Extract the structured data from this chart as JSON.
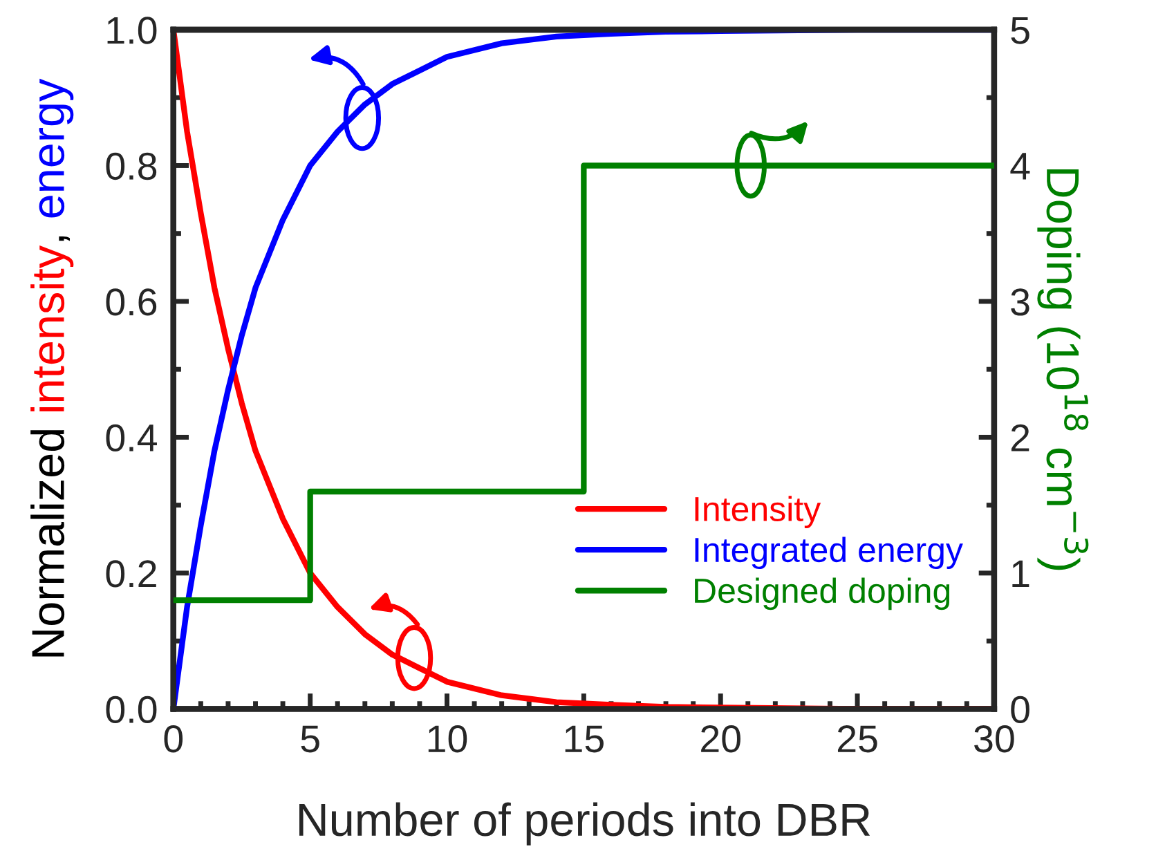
{
  "chart_data": {
    "type": "line",
    "xlabel": "Number of periods into DBR",
    "ylabel": "Normalized intensity, energy",
    "y2label": "Doping (10$^{18}$ cm$^{−3}$)",
    "xlim": [
      0,
      30
    ],
    "xticks": [
      0,
      5,
      10,
      15,
      20,
      25,
      30
    ],
    "ylim": [
      0,
      1
    ],
    "yticks": [
      {
        "value": 0,
        "label": "0.0"
      },
      {
        "value": 0.2,
        "label": "0.2"
      },
      {
        "value": 0.4,
        "label": "0.4"
      },
      {
        "value": 0.6,
        "label": "0.6"
      },
      {
        "value": 0.8,
        "label": "0.8"
      },
      {
        "value": 1,
        "label": "1.0"
      }
    ],
    "y2lim": [
      0,
      5
    ],
    "y2ticks": [
      0,
      1,
      2,
      3,
      4,
      5
    ],
    "grid": false,
    "legend": "bottom right",
    "line_style": "solid",
    "marker": "none",
    "series": [
      {
        "name": "Intensity",
        "color": "#ff0000",
        "x": [
          0,
          0.5,
          1,
          1.5,
          2,
          2.5,
          3,
          4,
          5,
          6,
          7,
          8,
          9,
          10,
          12,
          14,
          16,
          18,
          20,
          25,
          30
        ],
        "values": [
          1.0,
          0.85,
          0.73,
          0.62,
          0.53,
          0.45,
          0.38,
          0.28,
          0.2,
          0.15,
          0.11,
          0.08,
          0.06,
          0.04,
          0.02,
          0.01,
          0.006,
          0.003,
          0.002,
          0,
          0
        ]
      },
      {
        "name": "Integrated energy",
        "color": "#0000ff",
        "x": [
          0,
          0.5,
          1,
          1.5,
          2,
          2.5,
          3,
          4,
          5,
          6,
          7,
          8,
          9,
          10,
          12,
          14,
          16,
          18,
          20,
          25,
          30
        ],
        "values": [
          0,
          0.15,
          0.27,
          0.38,
          0.47,
          0.55,
          0.62,
          0.72,
          0.8,
          0.85,
          0.89,
          0.92,
          0.94,
          0.96,
          0.98,
          0.99,
          0.994,
          0.997,
          0.998,
          1.0,
          1.0
        ]
      },
      {
        "name": "Designed doping",
        "color": "#008000",
        "type": "step",
        "axis": "y2",
        "x": [
          0,
          5,
          15,
          30
        ],
        "values": [
          0.8,
          1.6,
          4,
          4
        ]
      }
    ]
  }
}
